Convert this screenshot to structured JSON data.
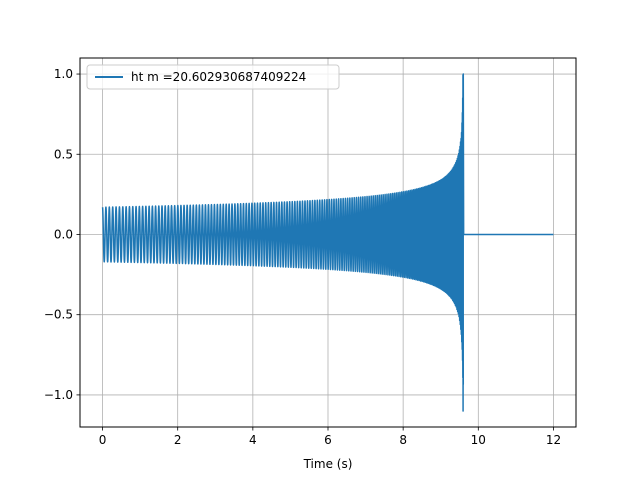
{
  "chart_data": {
    "type": "line",
    "title": "",
    "xlabel": "Time (s)",
    "ylabel": "",
    "xlim": [
      -0.6,
      12.6
    ],
    "ylim": [
      -1.2,
      1.1
    ],
    "xticks": [
      0,
      2,
      4,
      6,
      8,
      10,
      12
    ],
    "xtick_labels": [
      "0",
      "2",
      "4",
      "6",
      "8",
      "10",
      "12"
    ],
    "yticks": [
      -1.0,
      -0.5,
      0.0,
      0.5,
      1.0
    ],
    "ytick_labels": [
      "−1.0",
      "−0.5",
      "0.0",
      "0.5",
      "1.0"
    ],
    "grid": true,
    "legend_position": "upper-left",
    "series": [
      {
        "name": "ht m =20.602930687409224",
        "color": "#1f77b4",
        "waveform": "chirp",
        "t_start": 0.0,
        "t_merger": 9.6,
        "t_end": 12.0,
        "initial_amplitude": 0.17,
        "amplitude_at_8s": 0.25,
        "amplitude_at_9s": 0.33,
        "peak_max": 1.0,
        "peak_min": -1.1,
        "post_merger_value": 0.0
      }
    ]
  }
}
